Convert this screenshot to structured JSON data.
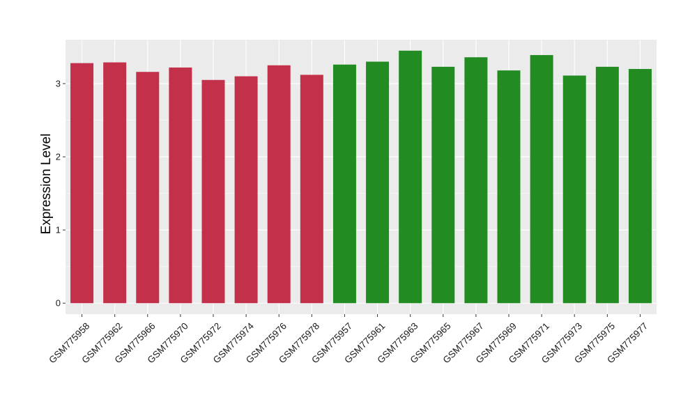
{
  "chart_data": {
    "type": "bar",
    "title": "",
    "xlabel": "",
    "ylabel": "Expression Level",
    "ylim": [
      -0.15,
      3.6
    ],
    "yticks": [
      0,
      1,
      2,
      3
    ],
    "grid": true,
    "categories": [
      "GSM775958",
      "GSM775962",
      "GSM775966",
      "GSM775970",
      "GSM775972",
      "GSM775974",
      "GSM775976",
      "GSM775978",
      "GSM775957",
      "GSM775961",
      "GSM775963",
      "GSM775965",
      "GSM775967",
      "GSM775969",
      "GSM775971",
      "GSM775973",
      "GSM775975",
      "GSM775977"
    ],
    "values": [
      3.28,
      3.29,
      3.16,
      3.22,
      3.05,
      3.1,
      3.25,
      3.12,
      3.26,
      3.3,
      3.45,
      3.23,
      3.36,
      3.18,
      3.39,
      3.11,
      3.23,
      3.2
    ],
    "colors": [
      "#c3304a",
      "#c3304a",
      "#c3304a",
      "#c3304a",
      "#c3304a",
      "#c3304a",
      "#c3304a",
      "#c3304a",
      "#228b22",
      "#228b22",
      "#228b22",
      "#228b22",
      "#228b22",
      "#228b22",
      "#228b22",
      "#228b22",
      "#228b22",
      "#228b22"
    ],
    "panel_background": "#ebebeb",
    "gridline_color": "#ffffff"
  }
}
